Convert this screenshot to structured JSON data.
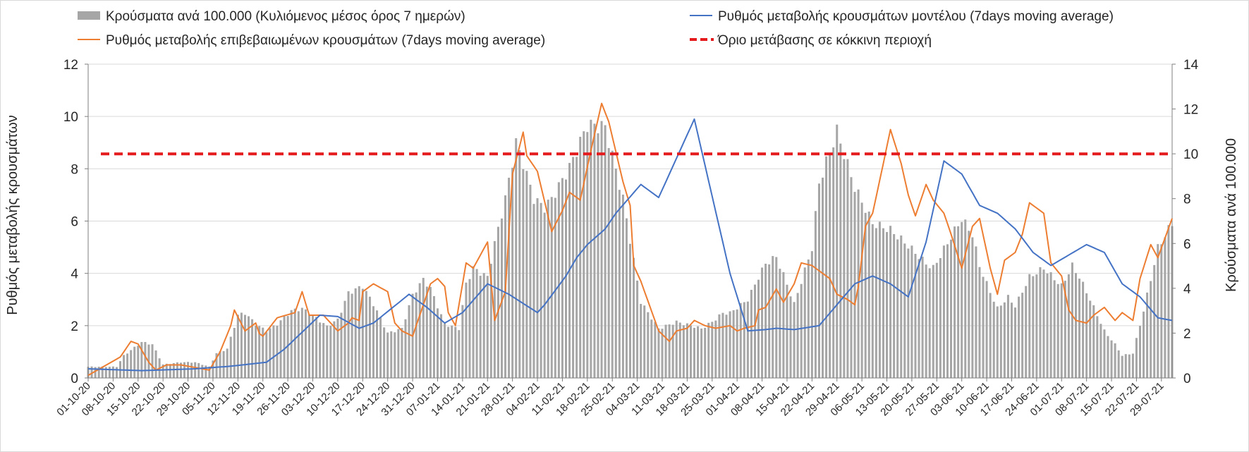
{
  "chart_data": {
    "type": "bar+line",
    "title": "",
    "legend": {
      "placement": "top",
      "entries": [
        {
          "key": "cases",
          "label": "Κρούσματα ανά 100.000 (Κυλιόμενος μέσος όρος 7 ημερών)",
          "style": "bar",
          "color": "#a6a6a6"
        },
        {
          "key": "model",
          "label": "Ρυθμός μεταβολής κρουσμάτων μοντέλου (7days moving average)",
          "style": "line",
          "color": "#4472c4"
        },
        {
          "key": "confirmed",
          "label": "Ρυθμός μεταβολής επιβεβαιωμένων κρουσμάτων (7days moving average)",
          "style": "line",
          "color": "#ed7d31"
        },
        {
          "key": "threshold",
          "label": "Όριο μετάβασης σε κόκκινη περιοχή",
          "style": "dashed-line",
          "color": "#e41a1c"
        }
      ]
    },
    "ylabel_left": "Ρυθμός μεταβολής κρουσμάτων",
    "ylabel_right": "Κρούσματα ανά 100.000",
    "ylim_left": [
      0,
      12
    ],
    "ylim_right": [
      0,
      14
    ],
    "yticks_left": [
      "0",
      "2",
      "4",
      "6",
      "8",
      "10",
      "12"
    ],
    "yticks_right": [
      "0",
      "2",
      "4",
      "6",
      "8",
      "10",
      "12",
      "14"
    ],
    "x_start": "2020-10-01",
    "x_end": "2021-08-01",
    "x_tick_labels": [
      "01-10-20",
      "08-10-20",
      "15-10-20",
      "22-10-20",
      "29-10-20",
      "05-11-20",
      "12-11-20",
      "19-11-20",
      "26-11-20",
      "03-12-20",
      "10-12-20",
      "17-12-20",
      "24-12-20",
      "31-12-20",
      "07-01-21",
      "14-01-21",
      "21-01-21",
      "28-01-21",
      "04-02-21",
      "11-02-21",
      "18-02-21",
      "25-02-21",
      "04-03-21",
      "11-03-21",
      "18-03-21",
      "25-03-21",
      "01-04-21",
      "08-04-21",
      "15-04-21",
      "22-04-21",
      "29-04-21",
      "06-05-21",
      "13-05-21",
      "20-05-21",
      "27-05-21",
      "03-06-21",
      "10-06-21",
      "17-06-21",
      "24-06-21",
      "01-07-21",
      "08-07-21",
      "15-07-21",
      "22-07-21",
      "29-07-21"
    ],
    "threshold_left_value": 8.57,
    "cases_per_100k_keypoints": {
      "day": [
        0,
        8,
        10,
        15,
        18,
        21,
        26,
        30,
        34,
        36,
        39,
        42,
        44,
        47,
        50,
        53,
        57,
        60,
        63,
        67,
        70,
        73,
        77,
        80,
        84,
        88,
        91,
        94,
        96,
        98,
        100,
        104,
        106,
        108,
        112,
        114,
        117,
        120,
        122,
        125,
        128,
        130,
        135,
        140,
        145,
        150,
        155,
        160,
        165,
        170,
        172,
        175,
        178,
        180,
        185,
        188,
        190,
        193,
        195,
        198,
        203,
        205,
        210,
        215,
        220,
        225,
        230,
        235,
        237,
        242,
        245,
        248,
        250,
        252,
        255,
        258,
        260,
        264,
        268,
        273,
        276,
        278,
        281,
        285,
        288,
        290,
        293,
        296,
        300,
        304
      ],
      "value": [
        0.5,
        0.5,
        1,
        1.6,
        1.5,
        0.6,
        0.7,
        0.7,
        0.5,
        1.1,
        1.3,
        2.8,
        2.9,
        2.4,
        2.1,
        2.4,
        3,
        3.1,
        2.8,
        2.3,
        2.6,
        3.8,
        4.1,
        3.3,
        2,
        2.2,
        3.7,
        4.4,
        4,
        3.2,
        2.4,
        2.2,
        4.2,
        4.9,
        4.5,
        6,
        8,
        10.5,
        9.6,
        8,
        7.6,
        8,
        9.4,
        11.3,
        11.2,
        8,
        3.4,
        2.2,
        2.5,
        2.3,
        2.2,
        2.5,
        2.9,
        2.9,
        3.5,
        4.5,
        5.1,
        5.4,
        4.6,
        3.3,
        5.8,
        8.7,
        11,
        8.5,
        6.9,
        6.6,
        5.9,
        5.1,
        4.9,
        6.3,
        7.1,
        6.4,
        5,
        4.2,
        3.1,
        3.6,
        3.2,
        4.5,
        4.9,
        4.1,
        5,
        4.5,
        3.5,
        2.1,
        1.5,
        1,
        1.1,
        3,
        5.8,
        6.9
      ]
    },
    "model_rate_keypoints": {
      "day": [
        0,
        15,
        30,
        40,
        50,
        55,
        65,
        70,
        76,
        80,
        90,
        95,
        100,
        105,
        112,
        118,
        126,
        128,
        134,
        137,
        140,
        145,
        148,
        155,
        160,
        170,
        180,
        185,
        190,
        193,
        198,
        205,
        210,
        215,
        220,
        225,
        230,
        235,
        240,
        245,
        250,
        255,
        260,
        265,
        270,
        275,
        280,
        285,
        290,
        295,
        300,
        304
      ],
      "value": [
        0.35,
        0.28,
        0.35,
        0.45,
        0.6,
        1.1,
        2.4,
        2.35,
        1.9,
        2.1,
        3.2,
        2.7,
        2.1,
        2.5,
        3.6,
        3.2,
        2.5,
        2.8,
        3.9,
        4.6,
        5.1,
        5.7,
        6.3,
        7.4,
        6.9,
        9.9,
        4,
        1.8,
        1.85,
        1.9,
        1.85,
        2,
        2.8,
        3.6,
        3.9,
        3.6,
        3.1,
        5.2,
        8.3,
        7.8,
        6.6,
        6.3,
        5.7,
        4.8,
        4.3,
        4.7,
        5.1,
        4.8,
        3.6,
        3.1,
        2.3,
        2.2
      ]
    },
    "confirmed_rate_keypoints": {
      "day": [
        0,
        9,
        12,
        14,
        17,
        19,
        22,
        26,
        30,
        34,
        37,
        40,
        41,
        44,
        47,
        48,
        49,
        53,
        58,
        60,
        62,
        66,
        70,
        73,
        74,
        76,
        77,
        80,
        84,
        86,
        88,
        91,
        93,
        96,
        98,
        100,
        101,
        103,
        106,
        108,
        112,
        114,
        117,
        119,
        122,
        123,
        126,
        130,
        133,
        135,
        138,
        141,
        143,
        144,
        146,
        150,
        152,
        153,
        155,
        160,
        163,
        165,
        168,
        170,
        173,
        176,
        180,
        182,
        184,
        187,
        188,
        190,
        193,
        195,
        198,
        200,
        203,
        205,
        208,
        210,
        213,
        215,
        216,
        218,
        220,
        223,
        225,
        228,
        230,
        232,
        235,
        237,
        240,
        242,
        245,
        248,
        250,
        253,
        255,
        257,
        260,
        262,
        264,
        268,
        270,
        273,
        275,
        277,
        280,
        282,
        285,
        288,
        290,
        293,
        295,
        298,
        300,
        304
      ],
      "value": [
        0.1,
        0.8,
        1.4,
        1.3,
        0.6,
        0.3,
        0.5,
        0.5,
        0.4,
        0.3,
        1,
        2,
        2.6,
        1.8,
        2.1,
        1.7,
        1.6,
        2.3,
        2.5,
        3.3,
        2.4,
        2.4,
        1.8,
        2.1,
        2.3,
        2.2,
        3.3,
        3.6,
        3.3,
        2.1,
        1.8,
        1.6,
        2.4,
        3.6,
        3.8,
        3.5,
        2.5,
        2,
        4.4,
        4.2,
        5.2,
        2.2,
        3.3,
        7.8,
        9.4,
        8.5,
        7.9,
        5.6,
        6.4,
        7.1,
        6.8,
        8.7,
        9.9,
        10.5,
        9.8,
        7.5,
        6.6,
        4.3,
        3.7,
        1.8,
        1.4,
        1.8,
        1.9,
        2.2,
        2,
        1.9,
        2,
        1.8,
        1.9,
        2,
        2.6,
        2.7,
        3.4,
        2.9,
        3.6,
        4.4,
        4.3,
        4.1,
        3.8,
        3.2,
        3,
        2.8,
        3.5,
        5.8,
        6.3,
        8.2,
        9.5,
        8.2,
        7,
        6.2,
        7.4,
        6.8,
        6.3,
        5.5,
        4.2,
        5.8,
        6.1,
        4.2,
        3.2,
        4.5,
        4.8,
        5.5,
        6.7,
        6.3,
        4.4,
        3.9,
        2.6,
        2.2,
        2.1,
        2.4,
        2.7,
        2.2,
        2.5,
        2.2,
        3.8,
        5.1,
        4.6,
        6.1
      ]
    }
  }
}
